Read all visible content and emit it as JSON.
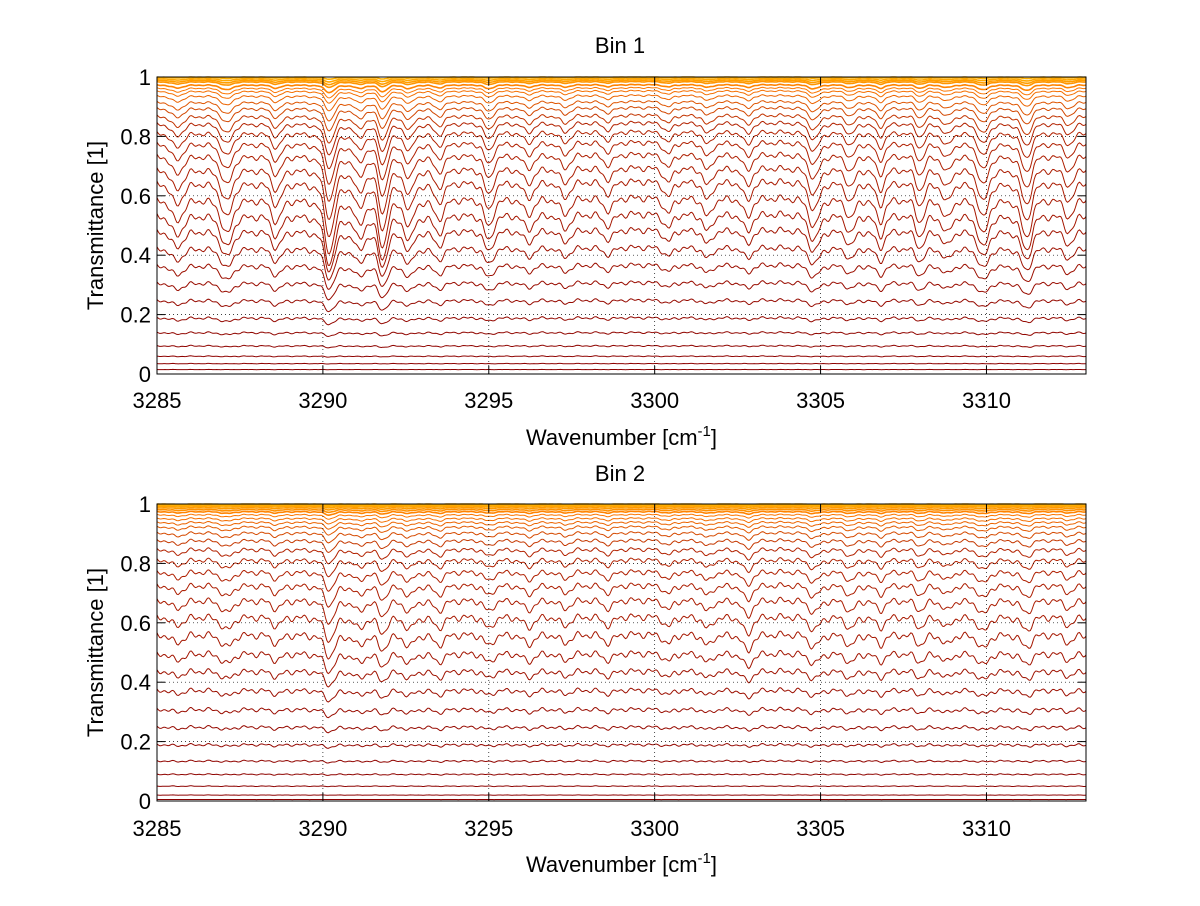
{
  "chart_data": [
    {
      "type": "line",
      "title": "Bin 1",
      "xlabel": "Wavenumber [cm",
      "xlabel_sup": "-1",
      "xlabel_suffix": "]",
      "ylabel": "Transmittance [1]",
      "xlim": [
        3285,
        3313
      ],
      "ylim": [
        0,
        1
      ],
      "xticks": [
        3285,
        3290,
        3295,
        3300,
        3305,
        3310
      ],
      "yticks": [
        0,
        0.2,
        0.4,
        0.6,
        0.8,
        1
      ],
      "grid": true,
      "line_colors": {
        "deep": "#8b0000",
        "mid": "#b22200",
        "light": "#ff7a00",
        "top": "#ffb000"
      },
      "baselines": [
        1.0,
        0.995,
        0.99,
        0.985,
        0.975,
        0.965,
        0.955,
        0.94,
        0.92,
        0.9,
        0.875,
        0.85,
        0.82,
        0.785,
        0.745,
        0.7,
        0.655,
        0.6,
        0.545,
        0.49,
        0.43,
        0.37,
        0.31,
        0.25,
        0.19,
        0.14,
        0.095,
        0.06,
        0.035,
        0.015
      ],
      "line_depth_scale": 0.65,
      "line_ripple_scale": 0.025,
      "absorption_lines": [
        {
          "x": 3285.6,
          "w": 0.18,
          "d": 0.35
        },
        {
          "x": 3287.1,
          "w": 0.16,
          "d": 0.55
        },
        {
          "x": 3288.6,
          "w": 0.14,
          "d": 0.35
        },
        {
          "x": 3290.2,
          "w": 0.14,
          "d": 0.8
        },
        {
          "x": 3291.1,
          "w": 0.12,
          "d": 0.35
        },
        {
          "x": 3291.8,
          "w": 0.12,
          "d": 0.7
        },
        {
          "x": 3292.6,
          "w": 0.12,
          "d": 0.4
        },
        {
          "x": 3293.5,
          "w": 0.14,
          "d": 0.3
        },
        {
          "x": 3295.0,
          "w": 0.12,
          "d": 0.45
        },
        {
          "x": 3296.2,
          "w": 0.14,
          "d": 0.25
        },
        {
          "x": 3297.3,
          "w": 0.14,
          "d": 0.25
        },
        {
          "x": 3298.6,
          "w": 0.14,
          "d": 0.2
        },
        {
          "x": 3300.4,
          "w": 0.12,
          "d": 0.25
        },
        {
          "x": 3301.6,
          "w": 0.12,
          "d": 0.3
        },
        {
          "x": 3302.8,
          "w": 0.12,
          "d": 0.3
        },
        {
          "x": 3304.8,
          "w": 0.14,
          "d": 0.45
        },
        {
          "x": 3305.9,
          "w": 0.12,
          "d": 0.3
        },
        {
          "x": 3306.8,
          "w": 0.12,
          "d": 0.35
        },
        {
          "x": 3308.0,
          "w": 0.12,
          "d": 0.35
        },
        {
          "x": 3308.8,
          "w": 0.12,
          "d": 0.3
        },
        {
          "x": 3309.9,
          "w": 0.14,
          "d": 0.55
        },
        {
          "x": 3311.2,
          "w": 0.14,
          "d": 0.6
        },
        {
          "x": 3312.5,
          "w": 0.14,
          "d": 0.3
        }
      ]
    },
    {
      "type": "line",
      "title": "Bin 2",
      "xlabel": "Wavenumber [cm",
      "xlabel_sup": "-1",
      "xlabel_suffix": "]",
      "ylabel": "Transmittance [1]",
      "xlim": [
        3285,
        3313
      ],
      "ylim": [
        0,
        1
      ],
      "xticks": [
        3285,
        3290,
        3295,
        3300,
        3305,
        3310
      ],
      "yticks": [
        0,
        0.2,
        0.4,
        0.6,
        0.8,
        1
      ],
      "grid": true,
      "line_colors": {
        "deep": "#8b0000",
        "mid": "#b22200",
        "light": "#ff7a00",
        "top": "#ffb000"
      },
      "baselines": [
        1.0,
        0.997,
        0.993,
        0.988,
        0.982,
        0.975,
        0.965,
        0.953,
        0.94,
        0.925,
        0.905,
        0.88,
        0.85,
        0.815,
        0.775,
        0.73,
        0.68,
        0.625,
        0.565,
        0.5,
        0.44,
        0.375,
        0.31,
        0.25,
        0.19,
        0.135,
        0.09,
        0.05,
        0.02,
        0.005
      ],
      "line_depth_scale": 0.3,
      "line_ripple_scale": 0.025,
      "absorption_lines": [
        {
          "x": 3285.6,
          "w": 0.18,
          "d": 0.3
        },
        {
          "x": 3287.1,
          "w": 0.16,
          "d": 0.45
        },
        {
          "x": 3288.6,
          "w": 0.14,
          "d": 0.3
        },
        {
          "x": 3290.2,
          "w": 0.14,
          "d": 0.75
        },
        {
          "x": 3291.1,
          "w": 0.12,
          "d": 0.35
        },
        {
          "x": 3291.8,
          "w": 0.12,
          "d": 0.5
        },
        {
          "x": 3292.6,
          "w": 0.12,
          "d": 0.4
        },
        {
          "x": 3293.5,
          "w": 0.14,
          "d": 0.35
        },
        {
          "x": 3295.0,
          "w": 0.12,
          "d": 0.4
        },
        {
          "x": 3296.2,
          "w": 0.14,
          "d": 0.35
        },
        {
          "x": 3297.3,
          "w": 0.14,
          "d": 0.3
        },
        {
          "x": 3298.6,
          "w": 0.14,
          "d": 0.3
        },
        {
          "x": 3300.4,
          "w": 0.12,
          "d": 0.35
        },
        {
          "x": 3301.6,
          "w": 0.12,
          "d": 0.4
        },
        {
          "x": 3302.8,
          "w": 0.12,
          "d": 0.6
        },
        {
          "x": 3304.8,
          "w": 0.14,
          "d": 0.45
        },
        {
          "x": 3305.9,
          "w": 0.12,
          "d": 0.4
        },
        {
          "x": 3306.8,
          "w": 0.12,
          "d": 0.35
        },
        {
          "x": 3308.0,
          "w": 0.12,
          "d": 0.35
        },
        {
          "x": 3308.8,
          "w": 0.12,
          "d": 0.35
        },
        {
          "x": 3309.9,
          "w": 0.14,
          "d": 0.5
        },
        {
          "x": 3311.2,
          "w": 0.14,
          "d": 0.45
        },
        {
          "x": 3312.5,
          "w": 0.14,
          "d": 0.3
        }
      ]
    }
  ]
}
